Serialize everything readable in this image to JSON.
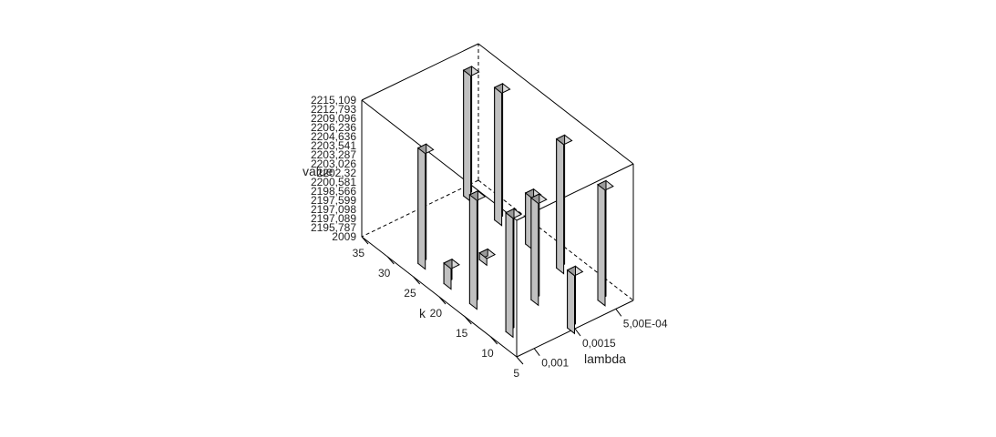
{
  "chart_data": {
    "type": "bar",
    "variant": "3d-bar",
    "title": "",
    "axes": {
      "x": {
        "label": "lambda",
        "ticks": [
          "0,001",
          "0,0015",
          "5,00E-04"
        ]
      },
      "y": {
        "label": "k",
        "ticks": [
          "5",
          "10",
          "15",
          "20",
          "25",
          "30",
          "35"
        ]
      },
      "z": {
        "label": "value",
        "ticks": [
          "2009",
          "2195,787",
          "2197,089",
          "2197,098",
          "2197,599",
          "2198,566",
          "2200,581",
          "2202,32",
          "2203,026",
          "2203,287",
          "2203,541",
          "2204,636",
          "2206,236",
          "2209,096",
          "2212,793",
          "2215,109"
        ]
      }
    },
    "points": [
      {
        "k": 33,
        "lambda": "5,00E-04",
        "value": 2213.5
      },
      {
        "k": 27,
        "lambda": "5,00E-04",
        "value": 2214.5
      },
      {
        "k": 26,
        "lambda": "0,001",
        "value": 2212.0
      },
      {
        "k": 22,
        "lambda": "0,0015",
        "value": 2196.0
      },
      {
        "k": 21,
        "lambda": "0,001",
        "value": 2198.0
      },
      {
        "k": 21,
        "lambda": "5,00E-04",
        "value": 2202.5
      },
      {
        "k": 16,
        "lambda": "0,001",
        "value": 2211.0
      },
      {
        "k": 15,
        "lambda": "5,00E-04",
        "value": 2214.0
      },
      {
        "k": 12,
        "lambda": "0,0015",
        "value": 2210.0
      },
      {
        "k": 9,
        "lambda": "0,001",
        "value": 2212.5
      },
      {
        "k": 7,
        "lambda": "5,00E-04",
        "value": 2212.0
      },
      {
        "k": 5,
        "lambda": "0,0015",
        "value": 2203.5
      }
    ]
  }
}
